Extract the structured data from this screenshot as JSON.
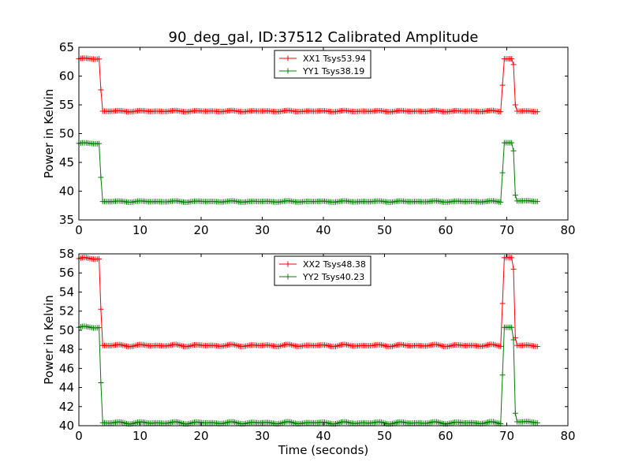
{
  "figure": {
    "title": "90_deg_gal, ID:37512 Calibrated Amplitude"
  },
  "colors": {
    "xx": "#ff0000",
    "yy": "#008000",
    "axis": "#000000",
    "background": "#ffffff"
  },
  "chart_data": [
    {
      "type": "line",
      "title": "90_deg_gal, ID:37512 Calibrated Amplitude",
      "xlabel": "",
      "ylabel": "Power in Kelvin",
      "xlim": [
        0,
        80
      ],
      "ylim": [
        35,
        65
      ],
      "xticks": [
        "0",
        "10",
        "20",
        "30",
        "40",
        "50",
        "60",
        "70",
        "80"
      ],
      "yticks": [
        "35",
        "40",
        "45",
        "50",
        "55",
        "60",
        "65"
      ],
      "grid": false,
      "legend_position": "top-center",
      "markers": "plus",
      "series": [
        {
          "name": "XX1 Tsys53.94",
          "color": "#ff0000",
          "segments": [
            {
              "t0": 0.0,
              "t1": 3.3,
              "value": 63.0
            },
            {
              "t0": 3.6,
              "t1": 3.6,
              "value": 57.6
            },
            {
              "t0": 3.9,
              "t1": 69.0,
              "value": 53.9
            },
            {
              "t0": 69.3,
              "t1": 69.3,
              "value": 58.4
            },
            {
              "t0": 69.6,
              "t1": 70.8,
              "value": 63.0
            },
            {
              "t0": 71.1,
              "t1": 71.1,
              "value": 62.0
            },
            {
              "t0": 71.4,
              "t1": 71.4,
              "value": 55.0
            },
            {
              "t0": 71.7,
              "t1": 75.0,
              "value": 53.9
            }
          ]
        },
        {
          "name": "YY1 Tsys38.19",
          "color": "#008000",
          "segments": [
            {
              "t0": 0.0,
              "t1": 3.3,
              "value": 48.3
            },
            {
              "t0": 3.6,
              "t1": 3.6,
              "value": 42.4
            },
            {
              "t0": 3.9,
              "t1": 69.0,
              "value": 38.2
            },
            {
              "t0": 69.3,
              "t1": 69.3,
              "value": 43.2
            },
            {
              "t0": 69.6,
              "t1": 70.8,
              "value": 48.4
            },
            {
              "t0": 71.1,
              "t1": 71.1,
              "value": 47.0
            },
            {
              "t0": 71.4,
              "t1": 71.4,
              "value": 39.3
            },
            {
              "t0": 71.7,
              "t1": 75.0,
              "value": 38.3
            }
          ]
        }
      ]
    },
    {
      "type": "line",
      "title": "",
      "xlabel": "Time (seconds)",
      "ylabel": "Power in Kelvin",
      "xlim": [
        0,
        80
      ],
      "ylim": [
        40,
        58
      ],
      "xticks": [
        "0",
        "10",
        "20",
        "30",
        "40",
        "50",
        "60",
        "70",
        "80"
      ],
      "yticks": [
        "40",
        "42",
        "44",
        "46",
        "48",
        "50",
        "52",
        "54",
        "56",
        "58"
      ],
      "grid": false,
      "legend_position": "top-center",
      "markers": "plus",
      "series": [
        {
          "name": "XX2 Tsys48.38",
          "color": "#ff0000",
          "segments": [
            {
              "t0": 0.0,
              "t1": 3.3,
              "value": 57.5
            },
            {
              "t0": 3.6,
              "t1": 3.6,
              "value": 52.2
            },
            {
              "t0": 3.9,
              "t1": 69.0,
              "value": 48.4
            },
            {
              "t0": 69.3,
              "t1": 69.3,
              "value": 52.8
            },
            {
              "t0": 69.6,
              "t1": 70.8,
              "value": 57.6
            },
            {
              "t0": 71.1,
              "t1": 71.1,
              "value": 56.4
            },
            {
              "t0": 71.4,
              "t1": 71.4,
              "value": 49.2
            },
            {
              "t0": 71.7,
              "t1": 75.0,
              "value": 48.4
            }
          ]
        },
        {
          "name": "YY2 Tsys40.23",
          "color": "#008000",
          "segments": [
            {
              "t0": 0.0,
              "t1": 3.3,
              "value": 50.3
            },
            {
              "t0": 3.6,
              "t1": 3.6,
              "value": 44.5
            },
            {
              "t0": 3.9,
              "t1": 69.0,
              "value": 40.3
            },
            {
              "t0": 69.3,
              "t1": 69.3,
              "value": 45.3
            },
            {
              "t0": 69.6,
              "t1": 70.8,
              "value": 50.3
            },
            {
              "t0": 71.1,
              "t1": 71.1,
              "value": 49.0
            },
            {
              "t0": 71.4,
              "t1": 71.4,
              "value": 41.3
            },
            {
              "t0": 71.7,
              "t1": 75.0,
              "value": 40.4
            }
          ]
        }
      ]
    }
  ]
}
